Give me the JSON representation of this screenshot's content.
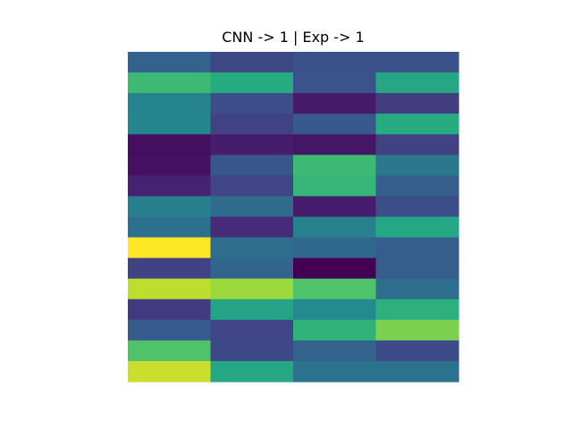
{
  "chart_data": {
    "type": "heatmap",
    "title": "CNN -> 1 | Exp -> 1",
    "colormap": "viridis",
    "vmin": 0,
    "vmax": 1,
    "rows": 16,
    "cols": 4,
    "axes_visible": false,
    "values": [
      [
        0.32,
        0.22,
        0.25,
        0.25
      ],
      [
        0.68,
        0.62,
        0.26,
        0.6
      ],
      [
        0.45,
        0.24,
        0.07,
        0.18
      ],
      [
        0.46,
        0.2,
        0.28,
        0.62
      ],
      [
        0.04,
        0.08,
        0.06,
        0.2
      ],
      [
        0.05,
        0.27,
        0.68,
        0.4
      ],
      [
        0.1,
        0.21,
        0.66,
        0.3
      ],
      [
        0.43,
        0.35,
        0.08,
        0.24
      ],
      [
        0.37,
        0.12,
        0.44,
        0.6
      ],
      [
        1.0,
        0.36,
        0.34,
        0.3
      ],
      [
        0.2,
        0.33,
        0.0,
        0.3
      ],
      [
        0.9,
        0.85,
        0.72,
        0.36
      ],
      [
        0.17,
        0.58,
        0.48,
        0.64
      ],
      [
        0.29,
        0.21,
        0.65,
        0.8
      ],
      [
        0.72,
        0.22,
        0.32,
        0.23
      ],
      [
        0.92,
        0.6,
        0.38,
        0.38
      ]
    ]
  }
}
